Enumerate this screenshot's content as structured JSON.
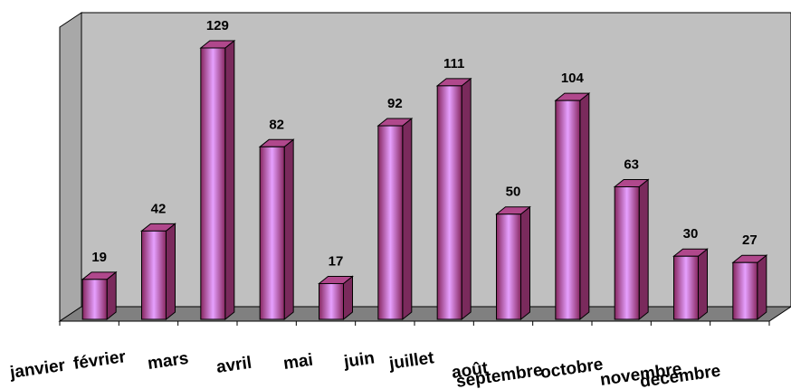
{
  "chart_data": {
    "type": "bar",
    "style": "3d-column",
    "categories": [
      "janvier",
      "février",
      "mars",
      "avril",
      "mai",
      "juin",
      "juillet",
      "août",
      "septembre",
      "octobre",
      "novembre",
      "decembre"
    ],
    "values": [
      19,
      42,
      129,
      82,
      17,
      92,
      111,
      50,
      104,
      63,
      30,
      27
    ],
    "data_labels": [
      "19",
      "42",
      "129",
      "82",
      "17",
      "92",
      "111",
      "50",
      "104",
      "63",
      "30",
      "27"
    ],
    "title": "",
    "xlabel": "",
    "ylabel": "",
    "ylim": [
      0,
      129
    ],
    "grid": false,
    "legend": "none",
    "colors": {
      "bar_edge": "#86265e",
      "bar_center": "#e6a0ff",
      "bar_side": "#7a2a5c",
      "bar_top": "#b0488c",
      "wall": "#c0c0c0",
      "floor": "#808080"
    }
  }
}
